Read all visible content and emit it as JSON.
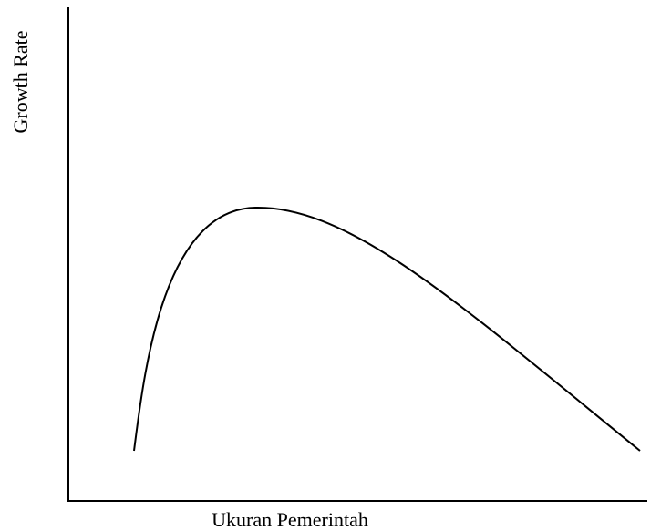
{
  "y_axis": {
    "label": "Growth Rate"
  },
  "x_axis": {
    "label": "Ukuran Pemerintah"
  }
}
